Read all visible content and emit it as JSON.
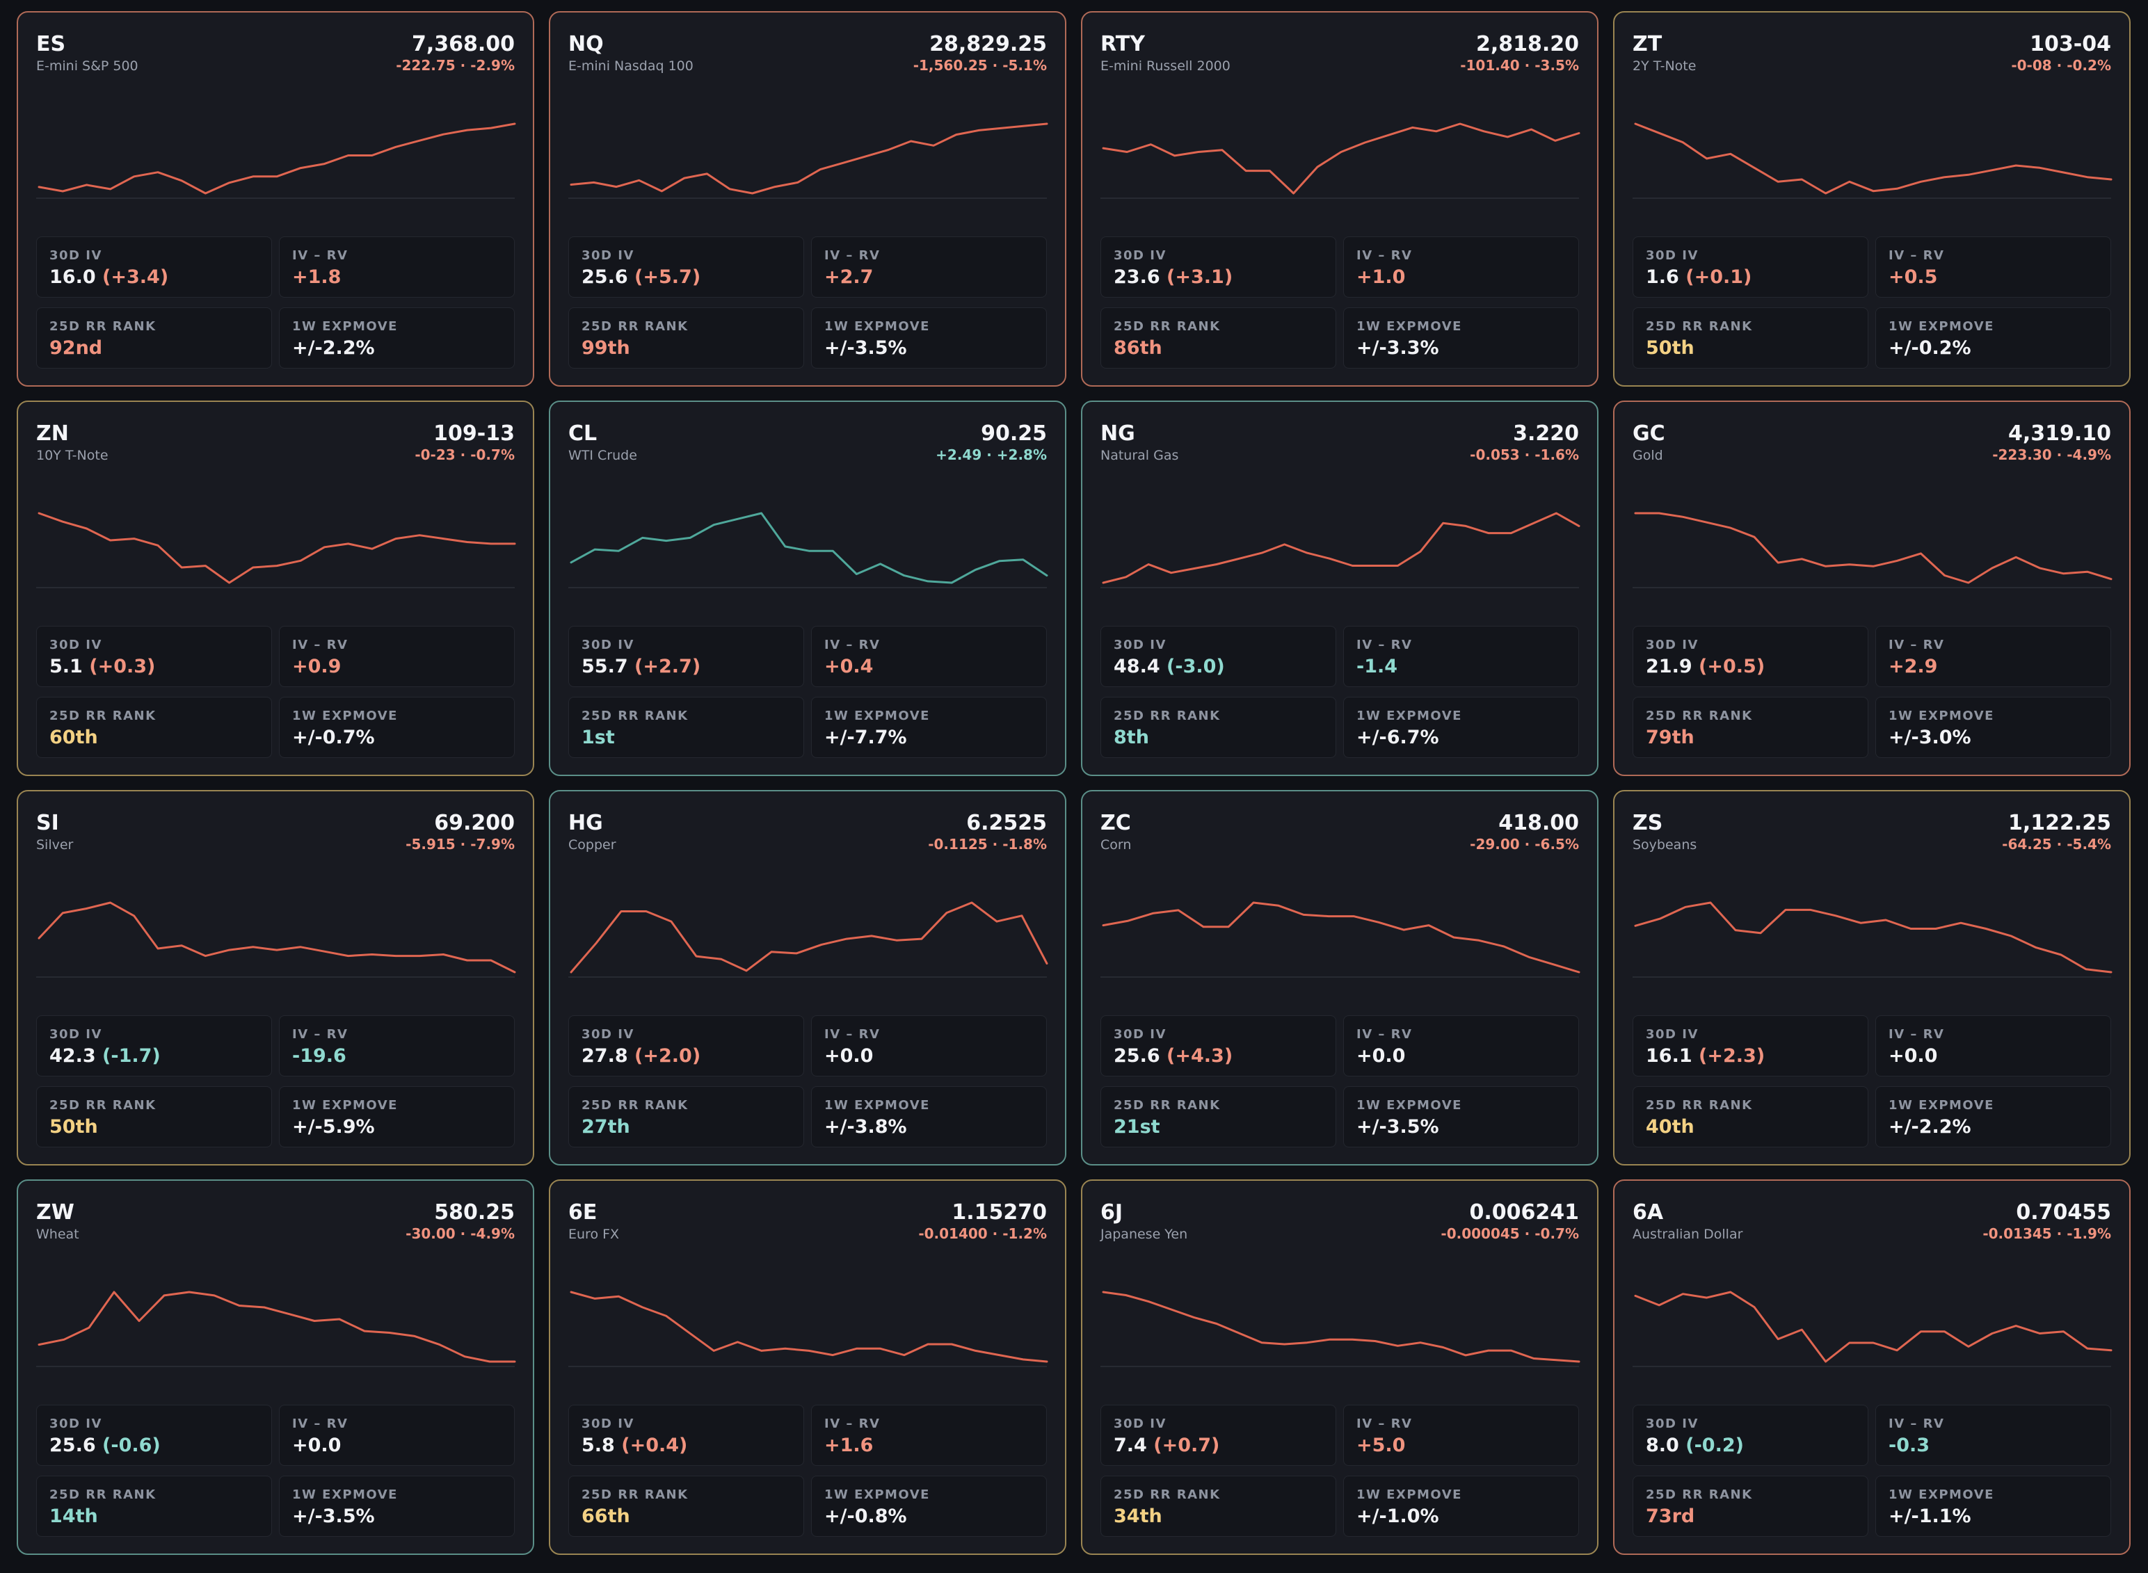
{
  "colors": {
    "background": "#0f1116",
    "card": "#181a21",
    "negative": "#f0937f",
    "positive": "#8fd9cf",
    "neutral_rank": "#f3d184",
    "line_negative": "#e06651",
    "line_positive": "#4fa89b",
    "border_red": "#b06a57",
    "border_yellow": "#9a8552",
    "border_green": "#5b8f88"
  },
  "stat_labels": {
    "iv30": "30D IV",
    "ivrv": "IV – RV",
    "rr_rank": "25D RR RANK",
    "expmove": "1W EXPMOVE"
  },
  "cards": [
    {
      "symbol": "ES",
      "name": "E-mini S&P 500",
      "price": "7,368.00",
      "change": "-222.75 · -2.9%",
      "direction": "down",
      "border": "red",
      "iv30": "16.0",
      "iv30_delta": "(+3.4)",
      "iv30_delta_tone": "neg",
      "ivrv": "+1.8",
      "ivrv_tone": "neg",
      "rr_rank": "92nd",
      "rr_tone": "neg",
      "expmove": "+/-2.2%",
      "spark": [
        3,
        1,
        4,
        2,
        8,
        10,
        6,
        0,
        5,
        8,
        8,
        12,
        14,
        18,
        18,
        22,
        25,
        28,
        30,
        31,
        33
      ]
    },
    {
      "symbol": "NQ",
      "name": "E-mini Nasdaq 100",
      "price": "28,829.25",
      "change": "-1,560.25 · -5.1%",
      "direction": "down",
      "border": "red",
      "iv30": "25.6",
      "iv30_delta": "(+5.7)",
      "iv30_delta_tone": "neg",
      "ivrv": "+2.7",
      "ivrv_tone": "neg",
      "rr_rank": "99th",
      "rr_tone": "neg",
      "expmove": "+/-3.5%",
      "spark": [
        5,
        6,
        4,
        7,
        2,
        8,
        10,
        3,
        1,
        4,
        6,
        12,
        15,
        18,
        21,
        25,
        23,
        28,
        30,
        31,
        32,
        33
      ]
    },
    {
      "symbol": "RTY",
      "name": "E-mini Russell 2000",
      "price": "2,818.20",
      "change": "-101.40 · -3.5%",
      "direction": "down",
      "border": "red",
      "iv30": "23.6",
      "iv30_delta": "(+3.1)",
      "iv30_delta_tone": "neg",
      "ivrv": "+1.0",
      "ivrv_tone": "neg",
      "rr_rank": "86th",
      "rr_tone": "neg",
      "expmove": "+/-3.3%",
      "spark": [
        24,
        22,
        26,
        20,
        22,
        23,
        12,
        12,
        0,
        14,
        22,
        27,
        31,
        35,
        33,
        37,
        33,
        30,
        34,
        28,
        32
      ]
    },
    {
      "symbol": "ZT",
      "name": "2Y T-Note",
      "price": "103-04",
      "change": "-0-08 · -0.2%",
      "direction": "down",
      "border": "yellow",
      "iv30": "1.6",
      "iv30_delta": "(+0.1)",
      "iv30_delta_tone": "neg",
      "ivrv": "+0.5",
      "ivrv_tone": "neg",
      "rr_rank": "50th",
      "rr_tone": "yellow",
      "expmove": "+/-0.2%",
      "spark": [
        40,
        36,
        32,
        25,
        27,
        21,
        15,
        16,
        10,
        15,
        11,
        12,
        15,
        17,
        18,
        20,
        22,
        21,
        19,
        17,
        16
      ]
    },
    {
      "symbol": "ZN",
      "name": "10Y T-Note",
      "price": "109-13",
      "change": "-0-23 · -0.7%",
      "direction": "down",
      "border": "yellow",
      "iv30": "5.1",
      "iv30_delta": "(+0.3)",
      "iv30_delta_tone": "neg",
      "ivrv": "+0.9",
      "ivrv_tone": "neg",
      "rr_rank": "60th",
      "rr_tone": "yellow",
      "expmove": "+/-0.7%",
      "spark": [
        46,
        41,
        37,
        30,
        31,
        27,
        14,
        15,
        5,
        14,
        15,
        18,
        26,
        28,
        25,
        31,
        33,
        31,
        29,
        28,
        28
      ]
    },
    {
      "symbol": "CL",
      "name": "WTI Crude",
      "price": "90.25",
      "change": "+2.49 · +2.8%",
      "direction": "up",
      "border": "green",
      "iv30": "55.7",
      "iv30_delta": "(+2.7)",
      "iv30_delta_tone": "neg",
      "ivrv": "+0.4",
      "ivrv_tone": "neg",
      "rr_rank": "1st",
      "rr_tone": "pos",
      "expmove": "+/-7.7%",
      "spark": [
        21,
        30,
        29,
        38,
        36,
        38,
        47,
        51,
        55,
        32,
        29,
        29,
        13,
        20,
        12,
        8,
        7,
        16,
        22,
        23,
        12
      ]
    },
    {
      "symbol": "NG",
      "name": "Natural Gas",
      "price": "3.220",
      "change": "-0.053 · -1.6%",
      "direction": "down",
      "border": "green",
      "iv30": "48.4",
      "iv30_delta": "(-3.0)",
      "iv30_delta_tone": "pos",
      "ivrv": "-1.4",
      "ivrv_tone": "pos",
      "rr_rank": "8th",
      "rr_tone": "pos",
      "expmove": "+/-6.7%",
      "spark": [
        5,
        9,
        18,
        12,
        15,
        18,
        22,
        26,
        32,
        26,
        22,
        17,
        17,
        17,
        27,
        47,
        45,
        40,
        40,
        47,
        54,
        45
      ]
    },
    {
      "symbol": "GC",
      "name": "Gold",
      "price": "4,319.10",
      "change": "-223.30 · -4.9%",
      "direction": "down",
      "border": "red",
      "iv30": "21.9",
      "iv30_delta": "(+0.5)",
      "iv30_delta_tone": "neg",
      "ivrv": "+2.9",
      "ivrv_tone": "neg",
      "rr_rank": "79th",
      "rr_tone": "neg",
      "expmove": "+/-3.0%",
      "spark": [
        56,
        56,
        54,
        51,
        48,
        43,
        29,
        31,
        27,
        28,
        27,
        30,
        34,
        22,
        18,
        26,
        32,
        26,
        23,
        24,
        20
      ]
    },
    {
      "symbol": "SI",
      "name": "Silver",
      "price": "69.200",
      "change": "-5.915 · -7.9%",
      "direction": "down",
      "border": "yellow",
      "iv30": "42.3",
      "iv30_delta": "(-1.7)",
      "iv30_delta_tone": "pos",
      "ivrv": "-19.6",
      "ivrv_tone": "pos",
      "rr_rank": "50th",
      "rr_tone": "yellow",
      "expmove": "+/-5.9%",
      "spark": [
        33,
        50,
        53,
        57,
        48,
        26,
        28,
        21,
        25,
        27,
        25,
        27,
        24,
        21,
        22,
        21,
        21,
        22,
        18,
        18,
        10
      ]
    },
    {
      "symbol": "HG",
      "name": "Copper",
      "price": "6.2525",
      "change": "-0.1125 · -1.8%",
      "direction": "down",
      "border": "green",
      "iv30": "27.8",
      "iv30_delta": "(+2.0)",
      "iv30_delta_tone": "neg",
      "ivrv": "+0.0",
      "ivrv_tone": "plain",
      "rr_rank": "27th",
      "rr_tone": "pos",
      "expmove": "+/-3.8%",
      "spark": [
        8,
        28,
        50,
        50,
        43,
        19,
        17,
        9,
        22,
        21,
        27,
        31,
        33,
        30,
        31,
        49,
        56,
        43,
        47,
        14
      ]
    },
    {
      "symbol": "ZC",
      "name": "Corn",
      "price": "418.00",
      "change": "-29.00 · -6.5%",
      "direction": "down",
      "border": "green",
      "iv30": "25.6",
      "iv30_delta": "(+4.3)",
      "iv30_delta_tone": "neg",
      "ivrv": "+0.0",
      "ivrv_tone": "plain",
      "rr_rank": "21st",
      "rr_tone": "pos",
      "expmove": "+/-3.5%",
      "spark": [
        38,
        41,
        46,
        48,
        37,
        37,
        53,
        51,
        45,
        44,
        44,
        40,
        35,
        38,
        30,
        28,
        24,
        17,
        12,
        7
      ]
    },
    {
      "symbol": "ZS",
      "name": "Soybeans",
      "price": "1,122.25",
      "change": "-64.25 · -5.4%",
      "direction": "down",
      "border": "yellow",
      "iv30": "16.1",
      "iv30_delta": "(+2.3)",
      "iv30_delta_tone": "neg",
      "ivrv": "+0.0",
      "ivrv_tone": "plain",
      "rr_rank": "40th",
      "rr_tone": "yellow",
      "expmove": "+/-2.2%",
      "spark": [
        40,
        45,
        53,
        56,
        37,
        35,
        51,
        51,
        47,
        42,
        44,
        38,
        38,
        42,
        38,
        33,
        25,
        20,
        10,
        8
      ]
    },
    {
      "symbol": "ZW",
      "name": "Wheat",
      "price": "580.25",
      "change": "-30.00 · -4.9%",
      "direction": "down",
      "border": "green",
      "iv30": "25.6",
      "iv30_delta": "(-0.6)",
      "iv30_delta_tone": "pos",
      "ivrv": "+0.0",
      "ivrv_tone": "plain",
      "rr_rank": "14th",
      "rr_tone": "pos",
      "expmove": "+/-3.5%",
      "spark": [
        25,
        28,
        35,
        56,
        39,
        54,
        56,
        54,
        48,
        47,
        43,
        39,
        40,
        33,
        32,
        30,
        25,
        18,
        15,
        15
      ]
    },
    {
      "symbol": "6E",
      "name": "Euro FX",
      "price": "1.15270",
      "change": "-0.01400 · -1.2%",
      "direction": "down",
      "border": "yellow",
      "iv30": "5.8",
      "iv30_delta": "(+0.4)",
      "iv30_delta_tone": "neg",
      "ivrv": "+1.6",
      "ivrv_tone": "neg",
      "rr_rank": "66th",
      "rr_tone": "yellow",
      "expmove": "+/-0.8%",
      "spark": [
        57,
        54,
        55,
        50,
        46,
        38,
        30,
        34,
        30,
        31,
        30,
        28,
        31,
        31,
        28,
        33,
        33,
        30,
        28,
        26,
        25
      ]
    },
    {
      "symbol": "6J",
      "name": "Japanese Yen",
      "price": "0.006241",
      "change": "-0.000045 · -0.7%",
      "direction": "down",
      "border": "yellow",
      "iv30": "7.4",
      "iv30_delta": "(+0.7)",
      "iv30_delta_tone": "neg",
      "ivrv": "+5.0",
      "ivrv_tone": "neg",
      "rr_rank": "34th",
      "rr_tone": "yellow",
      "expmove": "+/-1.0%",
      "spark": [
        59,
        57,
        53,
        48,
        43,
        39,
        33,
        27,
        26,
        27,
        29,
        29,
        28,
        25,
        27,
        24,
        19,
        22,
        22,
        17,
        16,
        15
      ]
    },
    {
      "symbol": "6A",
      "name": "Australian Dollar",
      "price": "0.70455",
      "change": "-0.01345 · -1.9%",
      "direction": "down",
      "border": "red",
      "iv30": "8.0",
      "iv30_delta": "(-0.2)",
      "iv30_delta_tone": "pos",
      "ivrv": "-0.3",
      "ivrv_tone": "pos",
      "rr_rank": "73rd",
      "rr_tone": "neg",
      "expmove": "+/-1.1%",
      "spark": [
        55,
        50,
        56,
        54,
        57,
        49,
        32,
        37,
        20,
        30,
        30,
        26,
        36,
        36,
        28,
        35,
        39,
        35,
        36,
        27,
        26
      ]
    }
  ]
}
